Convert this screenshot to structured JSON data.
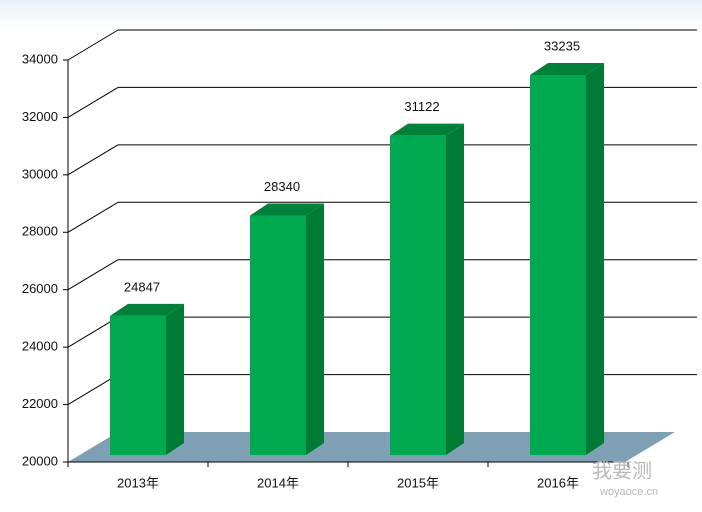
{
  "chart_data": {
    "type": "bar3d",
    "categories": [
      "2013年",
      "2014年",
      "2015年",
      "2016年"
    ],
    "values": [
      24847,
      28340,
      31122,
      33235
    ],
    "color": "#00a94f",
    "side_color": "#007a35",
    "floor_color": "#7f9fb5",
    "ylim": [
      20000,
      34000
    ],
    "yticks": [
      20000,
      22000,
      24000,
      26000,
      28000,
      30000,
      32000,
      34000
    ],
    "grid": true
  },
  "watermark": {
    "name": "我要测",
    "url": "woyaoce.cn"
  }
}
